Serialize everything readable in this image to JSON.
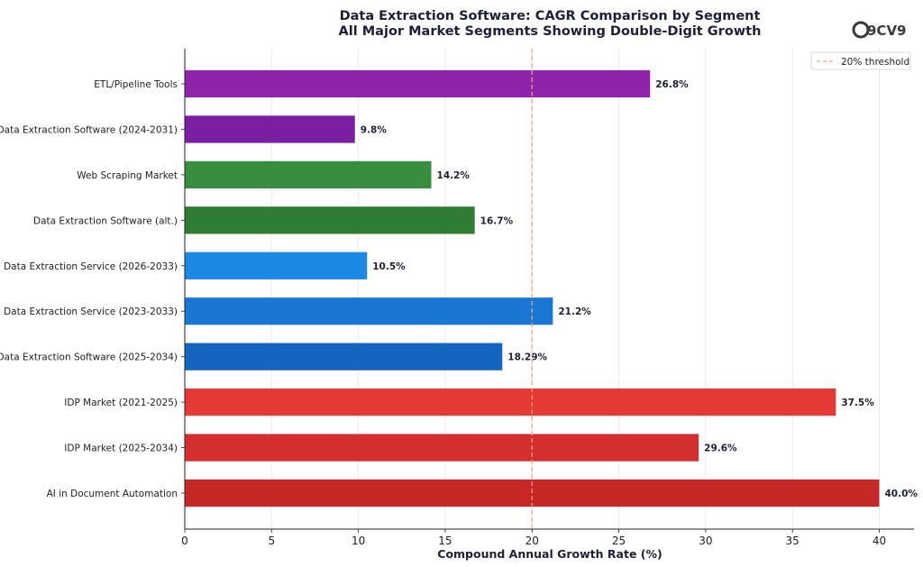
{
  "brand": {
    "logo_text": "9CV9"
  },
  "chart_data": {
    "type": "bar",
    "orientation": "horizontal",
    "title": "Data Extraction Software: CAGR Comparison by Segment",
    "subtitle": "All Major Market Segments Showing Double-Digit Growth",
    "xlabel": "Compound Annual Growth Rate (%)",
    "ylabel": "",
    "xlim": [
      0,
      42
    ],
    "xticks": [
      0,
      5,
      10,
      15,
      20,
      25,
      30,
      35,
      40
    ],
    "grid": "vertical",
    "legend_position": "top-right",
    "categories": [
      "ETL/Pipeline Tools",
      "Data Extraction Software (2024-2031)",
      "Web Scraping Market",
      "Data Extraction Software (alt.)",
      "Data Extraction Service (2026-2033)",
      "Data Extraction Service (2023-2033)",
      "Data Extraction Software (2025-2034)",
      "IDP Market (2021-2025)",
      "IDP Market (2025-2034)",
      "AI in Document Automation"
    ],
    "values": [
      26.8,
      9.8,
      14.2,
      16.7,
      10.5,
      21.2,
      18.29,
      37.5,
      29.6,
      40.0
    ],
    "value_labels": [
      "26.8%",
      "9.8%",
      "14.2%",
      "16.7%",
      "10.5%",
      "21.2%",
      "18.29%",
      "37.5%",
      "29.6%",
      "40.0%"
    ],
    "colors": [
      "#8e24aa",
      "#7b1fa2",
      "#388e3c",
      "#2e7d32",
      "#1e88e5",
      "#1976d2",
      "#1565c0",
      "#e53935",
      "#d32f2f",
      "#c62828"
    ],
    "reference_line": {
      "value": 20,
      "label": "20% threshold",
      "color": "#f4a582",
      "style": "dashed"
    }
  }
}
